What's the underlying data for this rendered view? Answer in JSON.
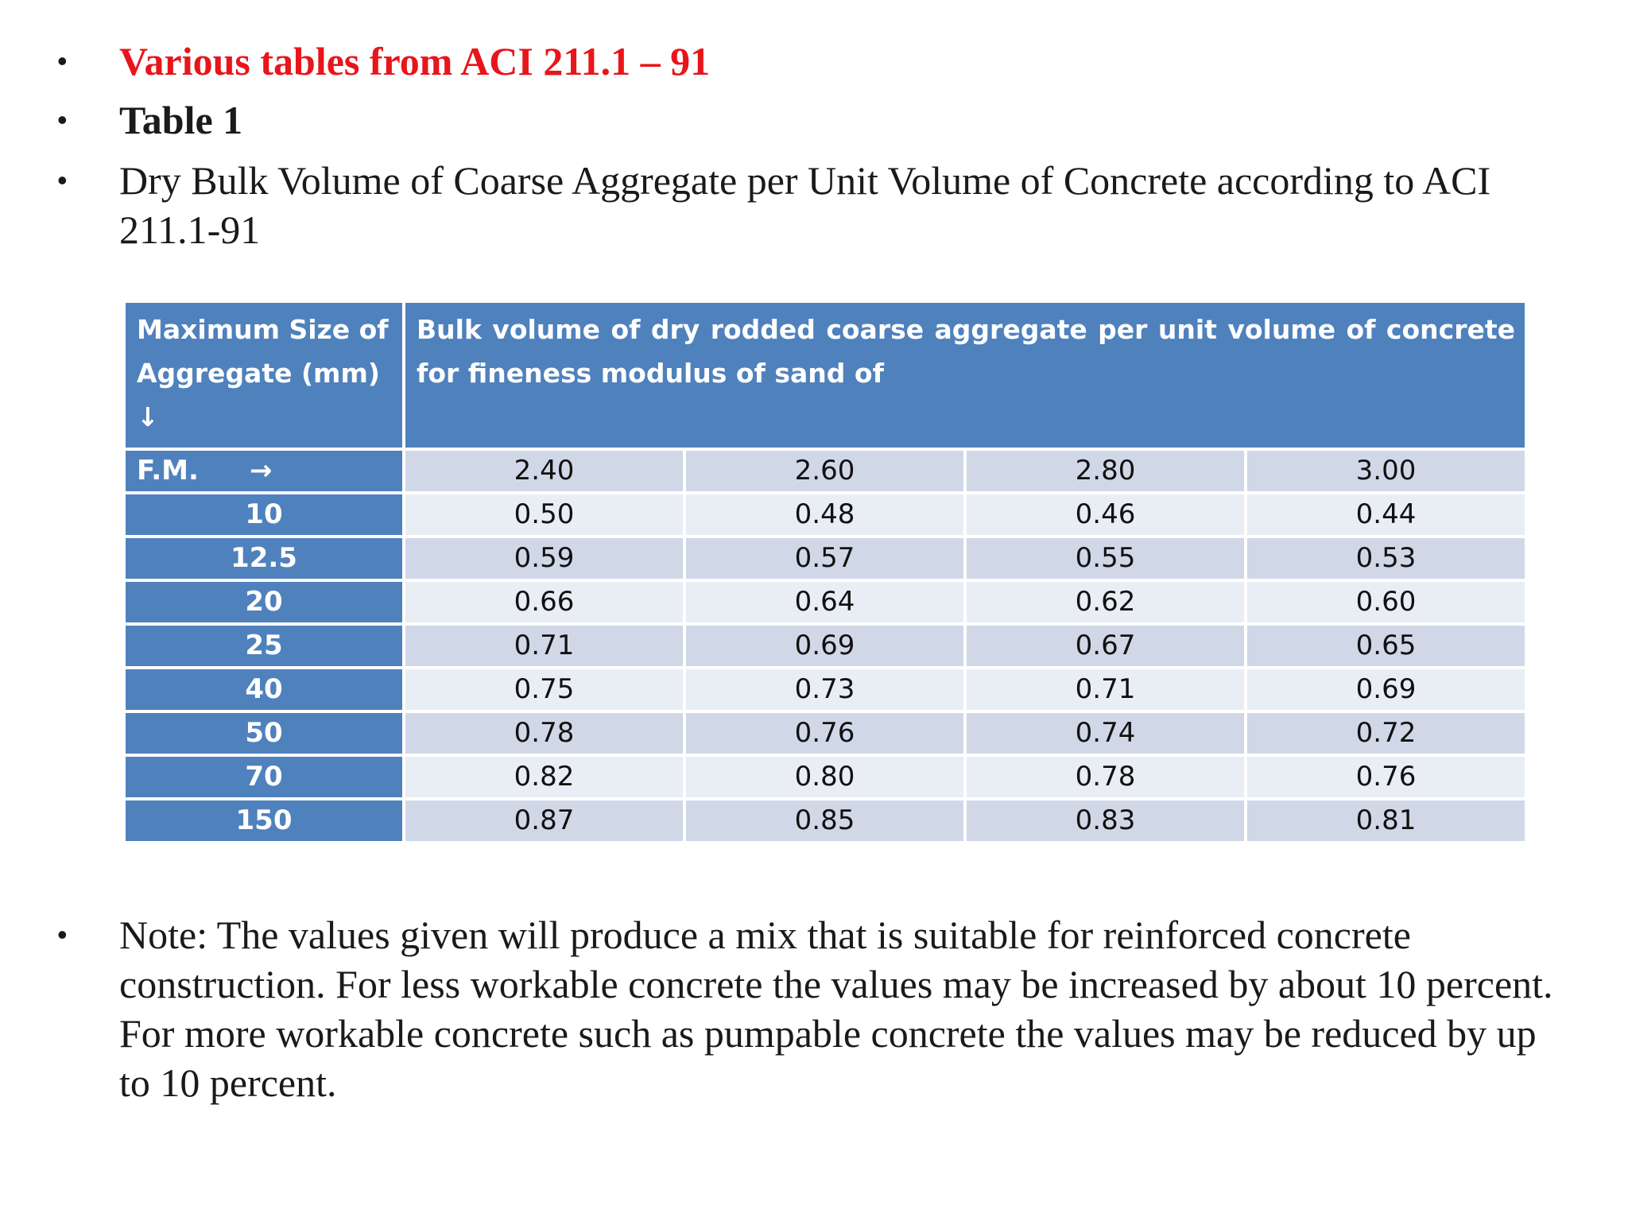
{
  "bullets": {
    "title": "Various tables from ACI 211.1 – 91",
    "table_label": "Table 1",
    "description": "Dry Bulk Volume of Coarse Aggregate per Unit Volume of Concrete according to ACI 211.1-91",
    "note": "Note: The values given will produce a mix that is suitable for reinforced concrete construction. For less workable concrete the values may be increased by about 10 percent. For more workable concrete such as pumpable concrete the values may be reduced by up to 10 percent."
  },
  "bullet_symbol": "•",
  "colors": {
    "title_red": "#e8151b",
    "header_blue": "#4f81bd",
    "row_dark": "#d0d8e8",
    "row_light": "#e9edf4"
  },
  "table": {
    "col1_header": "Maximum Size of Aggregate (mm)",
    "col1_header_arrow": "↓",
    "main_header": "Bulk volume of dry rodded coarse aggregate per unit volume of concrete for fineness modulus of sand of",
    "fm_label": "F.M.",
    "fm_arrow": "→",
    "fm_values": [
      "2.40",
      "2.60",
      "2.80",
      "3.00"
    ],
    "rows": [
      {
        "size": "10",
        "values": [
          "0.50",
          "0.48",
          "0.46",
          "0.44"
        ]
      },
      {
        "size": "12.5",
        "values": [
          "0.59",
          "0.57",
          "0.55",
          "0.53"
        ]
      },
      {
        "size": "20",
        "values": [
          "0.66",
          "0.64",
          "0.62",
          "0.60"
        ]
      },
      {
        "size": "25",
        "values": [
          "0.71",
          "0.69",
          "0.67",
          "0.65"
        ]
      },
      {
        "size": "40",
        "values": [
          "0.75",
          "0.73",
          "0.71",
          "0.69"
        ]
      },
      {
        "size": "50",
        "values": [
          "0.78",
          "0.76",
          "0.74",
          "0.72"
        ]
      },
      {
        "size": "70",
        "values": [
          "0.82",
          "0.80",
          "0.78",
          "0.76"
        ]
      },
      {
        "size": "150",
        "values": [
          "0.87",
          "0.85",
          "0.83",
          "0.81"
        ]
      }
    ]
  }
}
